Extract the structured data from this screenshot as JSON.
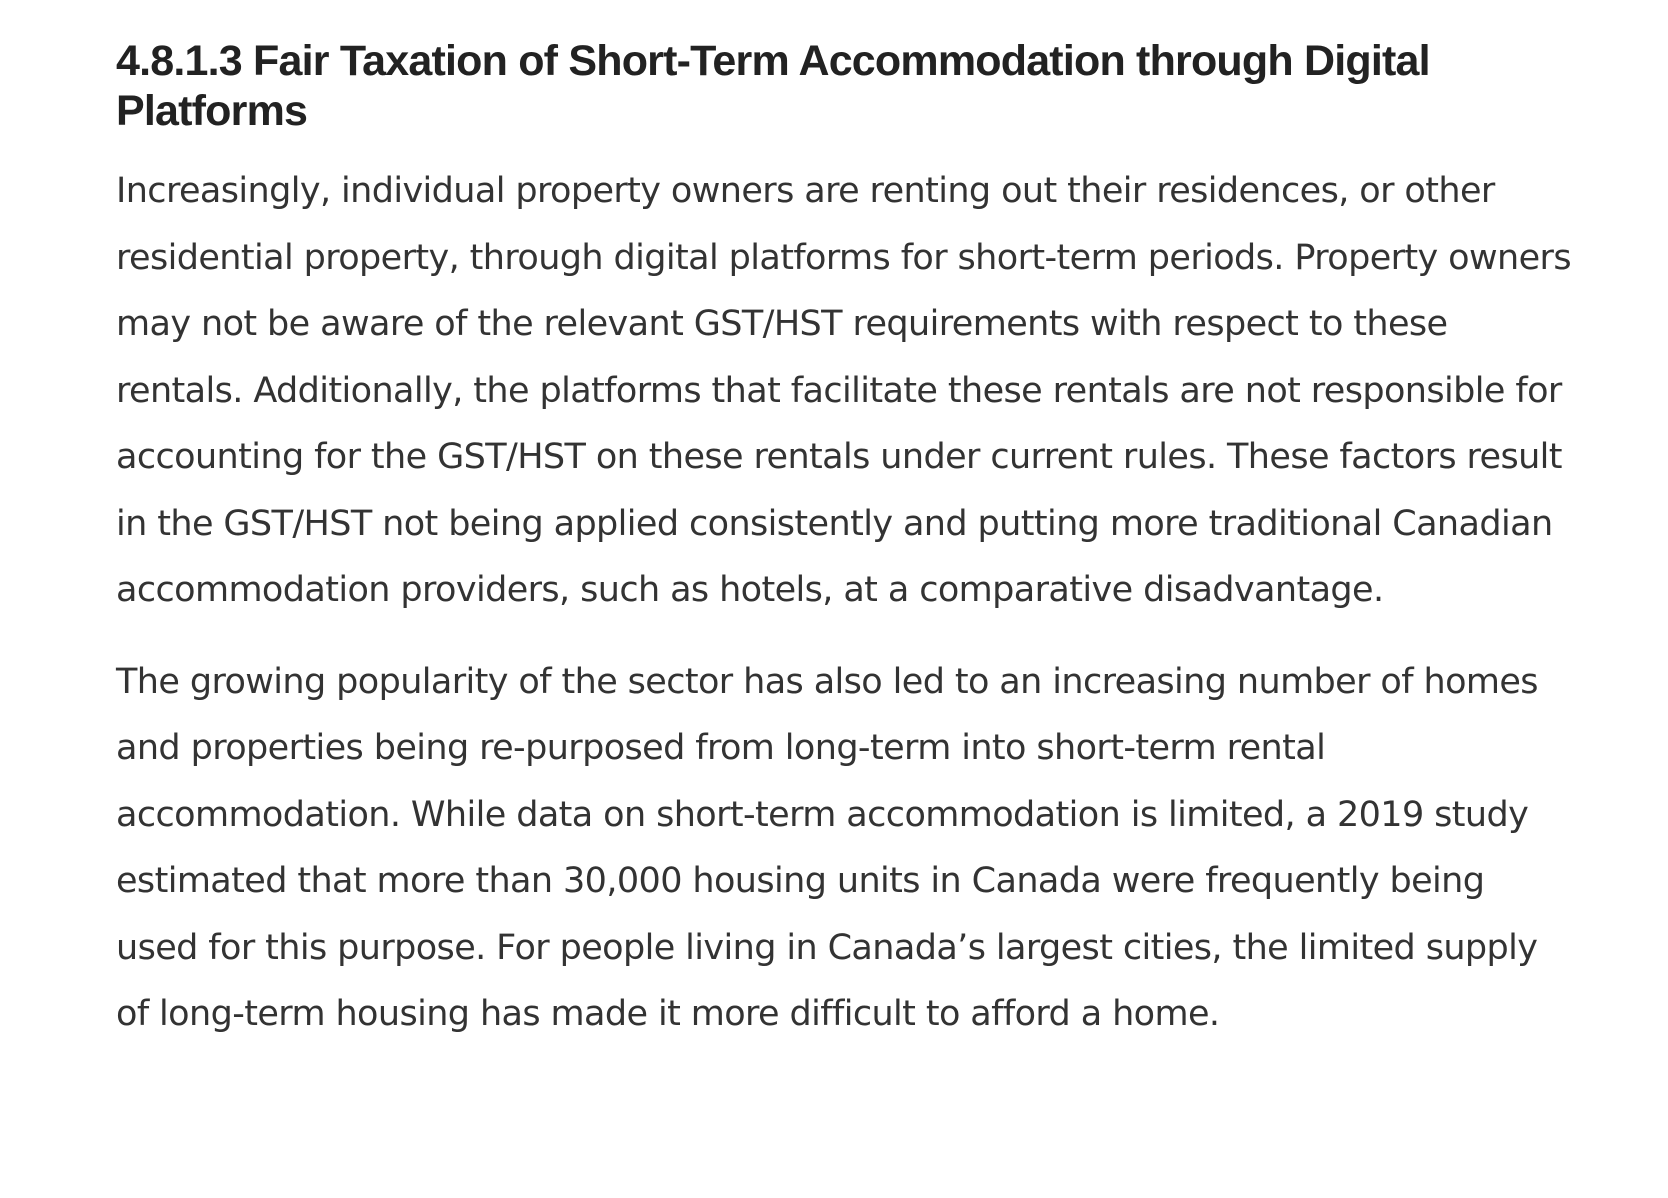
{
  "section": {
    "heading": "4.8.1.3 Fair Taxation of Short-Term Accommodation through Digital Platforms",
    "paragraphs": [
      "Increasingly, individual property owners are renting out their residences, or other residential property, through digital platforms for short-term periods. Property owners may not be aware of the relevant GST/HST requirements with respect to these rentals. Additionally, the platforms that facilitate these rentals are not responsible for accounting for the GST/HST on these rentals under current rules. These factors result in the GST/HST not being applied consistently and putting more traditional Canadian accommodation providers, such as hotels, at a comparative disadvantage.",
      "The growing popularity of the sector has also led to an increasing number of homes and properties being re-purposed from long-term into short-term rental accommodation. While data on short-term accommodation is limited, a 2019 study estimated that more than 30,000 housing units in Canada were frequently being used for this purpose. For people living in Canada’s largest cities, the limited supply of long-term housing has made it more difficult to afford a home."
    ]
  }
}
